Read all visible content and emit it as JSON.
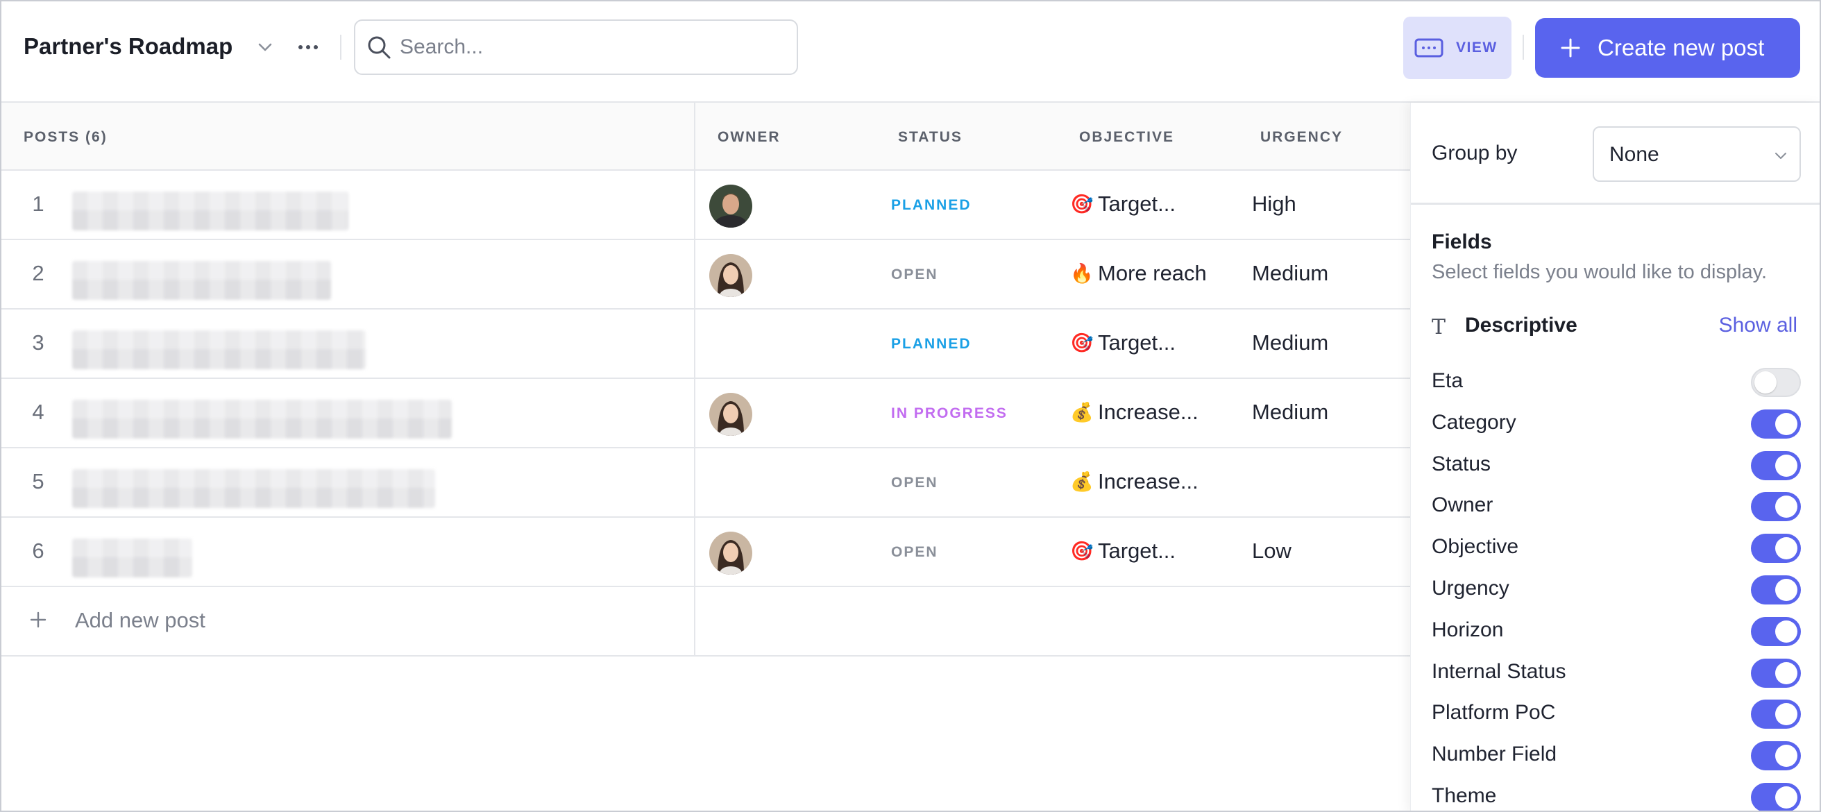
{
  "header": {
    "board_title": "Partner's Roadmap",
    "search_placeholder": "Search...",
    "view_label": "VIEW",
    "create_label": "Create new post"
  },
  "table": {
    "columns": {
      "posts": "POSTS (6)",
      "owner": "OWNER",
      "status": "STATUS",
      "objective": "OBJECTIVE",
      "urgency": "URGENCY"
    },
    "rows": [
      {
        "num": "1",
        "owner": "man",
        "status": "PLANNED",
        "status_color": "#1aa0e6",
        "objective_icon": "🎯",
        "objective": "Target...",
        "urgency": "High"
      },
      {
        "num": "2",
        "owner": "woman",
        "status": "OPEN",
        "status_color": "#8a8f99",
        "objective_icon": "🔥",
        "objective": "More reach",
        "urgency": "Medium"
      },
      {
        "num": "3",
        "owner": "",
        "status": "PLANNED",
        "status_color": "#1aa0e6",
        "objective_icon": "🎯",
        "objective": "Target...",
        "urgency": "Medium"
      },
      {
        "num": "4",
        "owner": "woman",
        "status": "IN PROGRESS",
        "status_color": "#c26cf0",
        "objective_icon": "💰",
        "objective": "Increase...",
        "urgency": "Medium"
      },
      {
        "num": "5",
        "owner": "",
        "status": "OPEN",
        "status_color": "#8a8f99",
        "objective_icon": "💰",
        "objective": "Increase...",
        "urgency": ""
      },
      {
        "num": "6",
        "owner": "woman",
        "status": "OPEN",
        "status_color": "#8a8f99",
        "objective_icon": "🎯",
        "objective": "Target...",
        "urgency": "Low"
      }
    ],
    "add_label": "Add new post"
  },
  "panel": {
    "group_by_label": "Group by",
    "group_by_value": "None",
    "fields_title": "Fields",
    "fields_desc": "Select fields you would like to display.",
    "group_icon": "T",
    "group_name": "Descriptive",
    "show_all": "Show all",
    "fields": [
      {
        "label": "Eta",
        "on": false
      },
      {
        "label": "Category",
        "on": true
      },
      {
        "label": "Status",
        "on": true
      },
      {
        "label": "Owner",
        "on": true
      },
      {
        "label": "Objective",
        "on": true
      },
      {
        "label": "Urgency",
        "on": true
      },
      {
        "label": "Horizon",
        "on": true
      },
      {
        "label": "Internal Status",
        "on": true
      },
      {
        "label": "Platform PoC",
        "on": true
      },
      {
        "label": "Number Field",
        "on": true
      },
      {
        "label": "Theme",
        "on": true
      }
    ]
  },
  "colors": {
    "accent": "#5964ee",
    "accent_light": "#dfe1fb",
    "status_planned": "#1aa0e6",
    "status_open": "#8a8f99",
    "status_in_progress": "#c26cf0"
  }
}
